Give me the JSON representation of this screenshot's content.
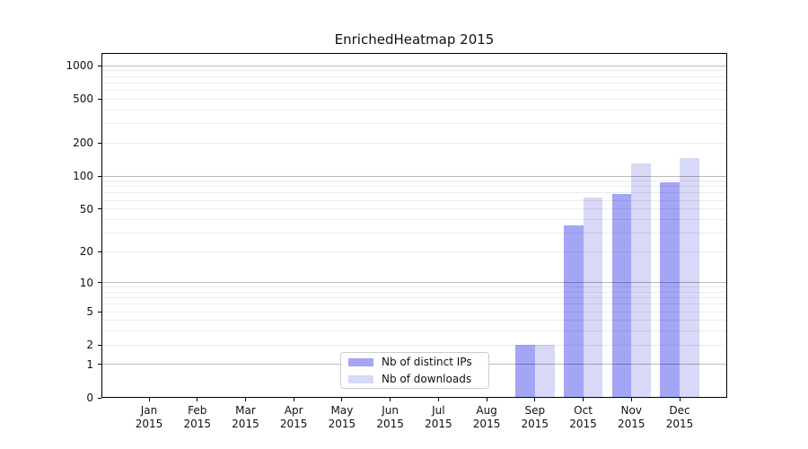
{
  "title": "EnrichedHeatmap 2015",
  "legend": {
    "items": [
      {
        "label": "Nb of distinct IPs",
        "color": "#a5a5f5"
      },
      {
        "label": "Nb of downloads",
        "color": "#d8d8f7"
      }
    ]
  },
  "chart_data": {
    "type": "bar",
    "title": "EnrichedHeatmap 2015",
    "scale": "log10(1+y)",
    "categories": [
      "Jan",
      "Feb",
      "Mar",
      "Apr",
      "May",
      "Jun",
      "Jul",
      "Aug",
      "Sep",
      "Oct",
      "Nov",
      "Dec"
    ],
    "year_label": "2015",
    "series": [
      {
        "name": "Nb of distinct IPs",
        "color": "#a5a5f5",
        "values": [
          0,
          0,
          0,
          0,
          0,
          0,
          0,
          0,
          2,
          35,
          68,
          88
        ]
      },
      {
        "name": "Nb of downloads",
        "color": "#d8d8f7",
        "values": [
          0,
          0,
          0,
          0,
          0,
          0,
          0,
          0,
          2,
          64,
          130,
          145
        ]
      }
    ],
    "yticks": [
      0,
      1,
      2,
      5,
      10,
      20,
      50,
      100,
      200,
      500,
      1000
    ],
    "ylim": [
      0,
      1308
    ],
    "grid": {
      "major_at": [
        1,
        10,
        100,
        1000
      ],
      "minor_at": "2-9 per decade"
    },
    "legend_position": "lower center-left",
    "xlabel": "",
    "ylabel": ""
  }
}
